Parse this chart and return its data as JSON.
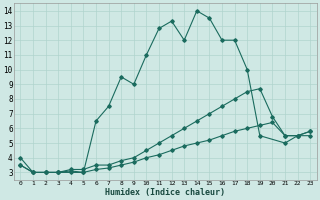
{
  "xlabel": "Humidex (Indice chaleur)",
  "ylabel": "",
  "bg_color": "#cfe8e4",
  "grid_color": "#b0d4ce",
  "line_color": "#1a6b5e",
  "xlim": [
    -0.5,
    23.5
  ],
  "ylim": [
    2.5,
    14.5
  ],
  "xticks": [
    0,
    1,
    2,
    3,
    4,
    5,
    6,
    7,
    8,
    9,
    10,
    11,
    12,
    13,
    14,
    15,
    16,
    17,
    18,
    19,
    20,
    21,
    22,
    23
  ],
  "yticks": [
    3,
    4,
    5,
    6,
    7,
    8,
    9,
    10,
    11,
    12,
    13,
    14
  ],
  "lines": [
    {
      "x": [
        0,
        1,
        2,
        3,
        4,
        5,
        6,
        7,
        8,
        9,
        10,
        11,
        12,
        13,
        14,
        15,
        16,
        17,
        18,
        19,
        21,
        22,
        23
      ],
      "y": [
        4,
        3,
        3,
        3,
        3,
        3,
        6.5,
        7.5,
        9.5,
        9.0,
        11.0,
        12.8,
        13.3,
        12.0,
        14.0,
        13.5,
        12.0,
        12.0,
        10.0,
        5.5,
        5.0,
        5.5,
        5.5
      ]
    },
    {
      "x": [
        0,
        1,
        2,
        3,
        4,
        5,
        6,
        7,
        8,
        9,
        10,
        11,
        12,
        13,
        14,
        15,
        16,
        17,
        18,
        19,
        20,
        21,
        22,
        23
      ],
      "y": [
        3.5,
        3,
        3,
        3,
        3.2,
        3.2,
        3.5,
        3.5,
        3.8,
        4.0,
        4.5,
        5.0,
        5.5,
        6.0,
        6.5,
        7.0,
        7.5,
        8.0,
        8.5,
        8.7,
        6.8,
        5.5,
        5.5,
        5.8
      ]
    },
    {
      "x": [
        0,
        1,
        2,
        3,
        4,
        5,
        6,
        7,
        8,
        9,
        10,
        11,
        12,
        13,
        14,
        15,
        16,
        17,
        18,
        19,
        20,
        21,
        22,
        23
      ],
      "y": [
        3.5,
        3,
        3,
        3,
        3.1,
        3.0,
        3.2,
        3.3,
        3.5,
        3.7,
        4.0,
        4.2,
        4.5,
        4.8,
        5.0,
        5.2,
        5.5,
        5.8,
        6.0,
        6.2,
        6.4,
        5.5,
        5.5,
        5.8
      ]
    }
  ]
}
